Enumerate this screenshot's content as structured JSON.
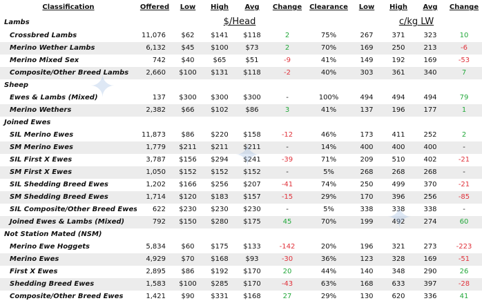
{
  "header": {
    "classification": "Classification",
    "offered": "Offered",
    "low": "Low",
    "high": "High",
    "avg": "Avg",
    "change": "Change",
    "clearance": "Clearance",
    "low2": "Low",
    "high2": "High",
    "avg2": "Avg",
    "change2": "Change"
  },
  "units": {
    "head": "$/Head",
    "cw": "c/kg LW"
  },
  "sections": [
    {
      "title": "Lambs",
      "rows": [
        {
          "name": "Crossbred Lambs",
          "offered": "11,076",
          "low": "$62",
          "high": "$141",
          "avg": "$118",
          "change": "2",
          "clearance": "75%",
          "low2": "267",
          "high2": "371",
          "avg2": "323",
          "change2": "10"
        },
        {
          "name": "Merino Wether Lambs",
          "offered": "6,132",
          "low": "$45",
          "high": "$100",
          "avg": "$73",
          "change": "2",
          "clearance": "70%",
          "low2": "169",
          "high2": "250",
          "avg2": "213",
          "change2": "-6"
        },
        {
          "name": "Merino Mixed Sex",
          "offered": "742",
          "low": "$40",
          "high": "$65",
          "avg": "$51",
          "change": "-9",
          "clearance": "41%",
          "low2": "149",
          "high2": "192",
          "avg2": "169",
          "change2": "-53"
        },
        {
          "name": "Composite/Other Breed Lambs",
          "offered": "2,660",
          "low": "$100",
          "high": "$131",
          "avg": "$118",
          "change": "-2",
          "clearance": "40%",
          "low2": "303",
          "high2": "361",
          "avg2": "340",
          "change2": "7"
        }
      ]
    },
    {
      "title": "Sheep",
      "rows": [
        {
          "name": "Ewes & Lambs (Mixed)",
          "offered": "137",
          "low": "$300",
          "high": "$300",
          "avg": "$300",
          "change": "-",
          "clearance": "100%",
          "low2": "494",
          "high2": "494",
          "avg2": "494",
          "change2": "79"
        },
        {
          "name": "Merino Wethers",
          "offered": "2,382",
          "low": "$66",
          "high": "$102",
          "avg": "$86",
          "change": "3",
          "clearance": "41%",
          "low2": "137",
          "high2": "196",
          "avg2": "177",
          "change2": "1"
        }
      ]
    },
    {
      "title": "Joined Ewes",
      "rows": [
        {
          "name": "SIL Merino Ewes",
          "offered": "11,873",
          "low": "$86",
          "high": "$220",
          "avg": "$158",
          "change": "-12",
          "clearance": "46%",
          "low2": "173",
          "high2": "411",
          "avg2": "252",
          "change2": "2"
        },
        {
          "name": "SM Merino Ewes",
          "offered": "1,779",
          "low": "$211",
          "high": "$211",
          "avg": "$211",
          "change": "-",
          "clearance": "14%",
          "low2": "400",
          "high2": "400",
          "avg2": "400",
          "change2": "-"
        },
        {
          "name": "SIL First X Ewes",
          "offered": "3,787",
          "low": "$156",
          "high": "$294",
          "avg": "$241",
          "change": "-39",
          "clearance": "71%",
          "low2": "209",
          "high2": "510",
          "avg2": "402",
          "change2": "-21"
        },
        {
          "name": "SM First X Ewes",
          "offered": "1,050",
          "low": "$152",
          "high": "$152",
          "avg": "$152",
          "change": "-",
          "clearance": "5%",
          "low2": "268",
          "high2": "268",
          "avg2": "268",
          "change2": "-"
        },
        {
          "name": "SIL Shedding Breed Ewes",
          "offered": "1,202",
          "low": "$166",
          "high": "$256",
          "avg": "$207",
          "change": "-41",
          "clearance": "74%",
          "low2": "250",
          "high2": "499",
          "avg2": "370",
          "change2": "-21"
        },
        {
          "name": "SM Shedding Breed Ewes",
          "offered": "1,714",
          "low": "$120",
          "high": "$183",
          "avg": "$157",
          "change": "-15",
          "clearance": "29%",
          "low2": "170",
          "high2": "396",
          "avg2": "256",
          "change2": "-85"
        },
        {
          "name": "SIL Composite/Other Breed Ewes",
          "offered": "622",
          "low": "$230",
          "high": "$230",
          "avg": "$230",
          "change": "-",
          "clearance": "5%",
          "low2": "338",
          "high2": "338",
          "avg2": "338",
          "change2": "-"
        },
        {
          "name": "Joined Ewes & Lambs (Mixed)",
          "offered": "792",
          "low": "$150",
          "high": "$280",
          "avg": "$175",
          "change": "45",
          "clearance": "70%",
          "low2": "199",
          "high2": "492",
          "avg2": "274",
          "change2": "60"
        }
      ]
    },
    {
      "title": "Not Station Mated (NSM)",
      "rows": [
        {
          "name": "Merino Ewe Hoggets",
          "offered": "5,834",
          "low": "$60",
          "high": "$175",
          "avg": "$133",
          "change": "-142",
          "clearance": "20%",
          "low2": "196",
          "high2": "321",
          "avg2": "273",
          "change2": "-223"
        },
        {
          "name": "Merino Ewes",
          "offered": "4,929",
          "low": "$70",
          "high": "$168",
          "avg": "$93",
          "change": "-30",
          "clearance": "36%",
          "low2": "123",
          "high2": "328",
          "avg2": "169",
          "change2": "-51"
        },
        {
          "name": "First X Ewes",
          "offered": "2,895",
          "low": "$86",
          "high": "$192",
          "avg": "$170",
          "change": "20",
          "clearance": "44%",
          "low2": "140",
          "high2": "348",
          "avg2": "290",
          "change2": "26"
        },
        {
          "name": "Shedding Breed Ewes",
          "offered": "1,583",
          "low": "$100",
          "high": "$285",
          "avg": "$170",
          "change": "-43",
          "clearance": "63%",
          "low2": "168",
          "high2": "633",
          "avg2": "397",
          "change2": "-28"
        },
        {
          "name": "Composite/Other Breed Ewes",
          "offered": "1,421",
          "low": "$90",
          "high": "$331",
          "avg": "$168",
          "change": "27",
          "clearance": "29%",
          "low2": "130",
          "high2": "620",
          "avg2": "336",
          "change2": "41"
        }
      ]
    }
  ],
  "colors": {
    "negative": "#e0313a",
    "positive": "#22a83a",
    "band": "#ececec"
  }
}
